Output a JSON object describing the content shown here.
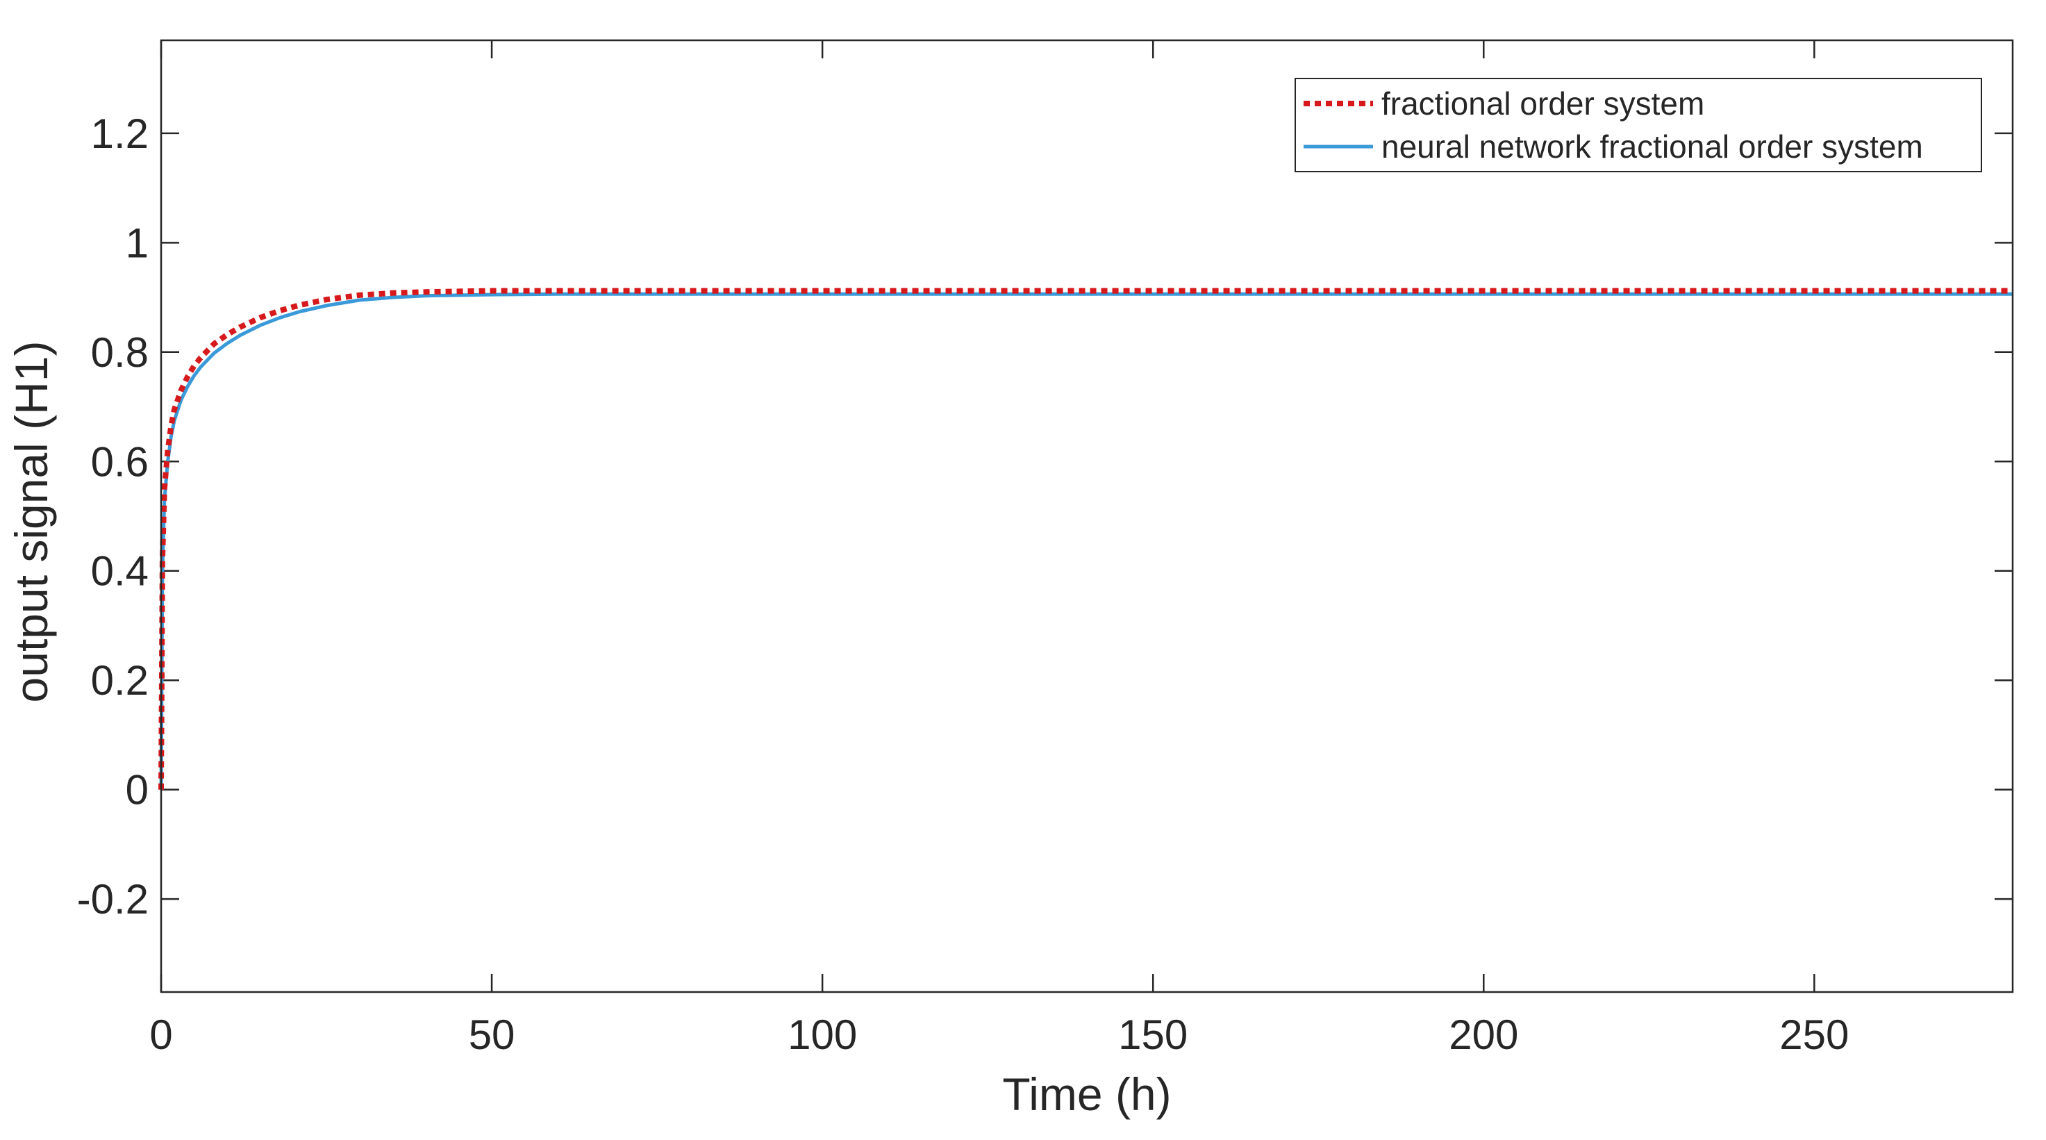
{
  "chart_data": {
    "type": "line",
    "title": "",
    "xlabel": "Time (h)",
    "ylabel": "output signal (H1)",
    "xlim": [
      0,
      280
    ],
    "ylim": [
      -0.37,
      1.37
    ],
    "x_ticks": [
      0,
      50,
      100,
      150,
      200,
      250
    ],
    "x_tick_labels": [
      "0",
      "50",
      "100",
      "150",
      "200",
      "250"
    ],
    "y_ticks": [
      -0.2,
      0,
      0.2,
      0.4,
      0.6,
      0.8,
      1,
      1.2
    ],
    "y_tick_labels": [
      "-0.2",
      "0",
      "0.2",
      "0.4",
      "0.6",
      "0.8",
      "1",
      "1.2"
    ],
    "grid": false,
    "legend_position": "top-right",
    "series": [
      {
        "name": "fractional order system",
        "color": "#d7191c",
        "style": "dotted",
        "x": [
          0,
          0.2,
          0.5,
          1,
          1.5,
          2,
          3,
          4,
          5,
          6,
          8,
          10,
          12,
          15,
          18,
          21,
          25,
          30,
          35,
          40,
          50,
          60,
          80,
          100,
          150,
          200,
          250,
          280
        ],
        "y": [
          0,
          0.42,
          0.55,
          0.62,
          0.665,
          0.695,
          0.73,
          0.755,
          0.775,
          0.79,
          0.815,
          0.832,
          0.846,
          0.863,
          0.876,
          0.886,
          0.896,
          0.904,
          0.908,
          0.91,
          0.912,
          0.912,
          0.912,
          0.912,
          0.912,
          0.912,
          0.912,
          0.912
        ]
      },
      {
        "name": "neural network fractional order system",
        "color": "#3a9ad9",
        "style": "solid",
        "x": [
          0,
          0.2,
          0.5,
          1,
          1.5,
          2,
          3,
          4,
          5,
          6,
          8,
          10,
          12,
          15,
          18,
          21,
          25,
          30,
          35,
          40,
          50,
          60,
          80,
          100,
          150,
          200,
          250,
          280
        ],
        "y": [
          0,
          0.4,
          0.53,
          0.6,
          0.645,
          0.675,
          0.712,
          0.737,
          0.757,
          0.773,
          0.798,
          0.816,
          0.831,
          0.849,
          0.863,
          0.874,
          0.885,
          0.895,
          0.9,
          0.903,
          0.905,
          0.906,
          0.906,
          0.906,
          0.906,
          0.906,
          0.906,
          0.906
        ]
      }
    ]
  }
}
